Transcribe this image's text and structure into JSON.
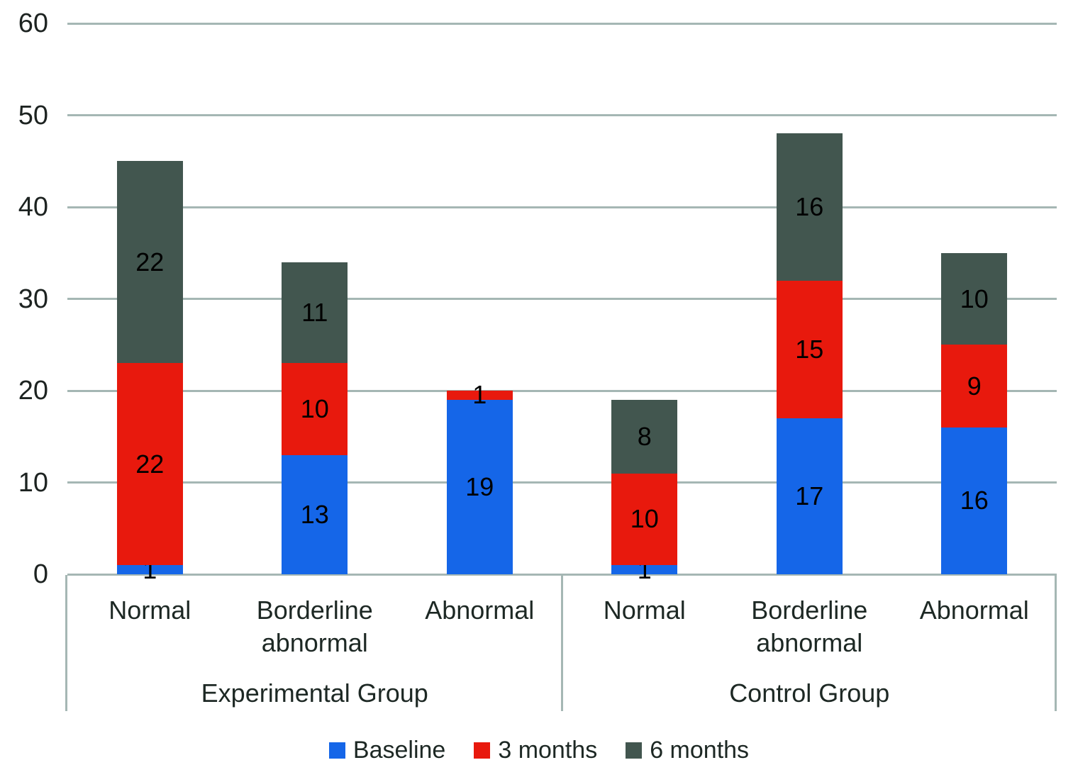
{
  "chart_data": {
    "type": "bar",
    "stacked": true,
    "title": "",
    "xlabel": "",
    "ylabel": "",
    "ylim": [
      0,
      60
    ],
    "yticks": [
      0,
      10,
      20,
      30,
      40,
      50,
      60
    ],
    "grid": true,
    "legend_position": "bottom",
    "groups": [
      {
        "label": "Experimental Group",
        "categories": [
          "Normal",
          "Borderline abnormal",
          "Abnormal"
        ]
      },
      {
        "label": "Control Group",
        "categories": [
          "Normal",
          "Borderline abnormal",
          "Abnormal"
        ]
      }
    ],
    "series": [
      {
        "name": "Baseline",
        "color": "#1566e8",
        "values": [
          1,
          13,
          19,
          1,
          17,
          16
        ]
      },
      {
        "name": "3 months",
        "color": "#e8190d",
        "values": [
          22,
          10,
          1,
          10,
          15,
          9
        ]
      },
      {
        "name": "6 months",
        "color": "#42564f",
        "values": [
          22,
          11,
          0,
          8,
          16,
          10
        ]
      }
    ],
    "colors": {
      "grid": "#a5b7b4",
      "axis": "#a5b7b4",
      "text": "#1d2824",
      "data_label": "#000000",
      "background": "#ffffff"
    }
  }
}
